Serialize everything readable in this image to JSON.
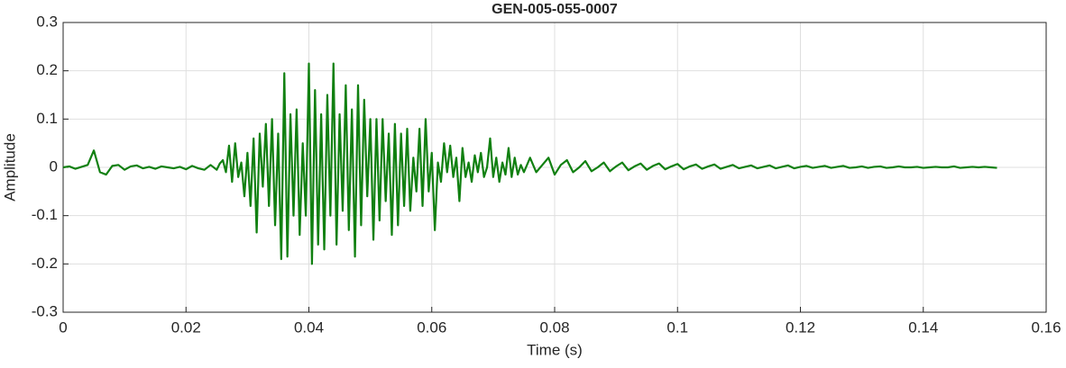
{
  "chart_data": {
    "type": "line",
    "title": "GEN-005-055-0007",
    "xlabel": "Time (s)",
    "ylabel": "Amplitude",
    "xlim": [
      0,
      0.16
    ],
    "ylim": [
      -0.3,
      0.3
    ],
    "xticks": [
      0,
      0.02,
      0.04,
      0.06,
      0.08,
      0.1,
      0.12,
      0.14,
      0.16
    ],
    "yticks": [
      -0.3,
      -0.2,
      -0.1,
      0,
      0.1,
      0.2,
      0.3
    ],
    "grid": true,
    "series": [
      {
        "color": "#118011",
        "x": [
          0,
          0.001,
          0.002,
          0.003,
          0.004,
          0.005,
          0.006,
          0.007,
          0.008,
          0.009,
          0.01,
          0.011,
          0.012,
          0.013,
          0.014,
          0.015,
          0.016,
          0.017,
          0.018,
          0.019,
          0.02,
          0.021,
          0.022,
          0.023,
          0.024,
          0.025,
          0.0255,
          0.026,
          0.0265,
          0.027,
          0.0275,
          0.028,
          0.0285,
          0.029,
          0.0295,
          0.03,
          0.0305,
          0.031,
          0.0315,
          0.032,
          0.0325,
          0.033,
          0.0335,
          0.034,
          0.0345,
          0.035,
          0.0355,
          0.036,
          0.0365,
          0.037,
          0.0375,
          0.038,
          0.0385,
          0.039,
          0.0395,
          0.04,
          0.0405,
          0.041,
          0.0415,
          0.042,
          0.0425,
          0.043,
          0.0435,
          0.044,
          0.0445,
          0.045,
          0.0455,
          0.046,
          0.0465,
          0.047,
          0.0475,
          0.048,
          0.0485,
          0.049,
          0.0495,
          0.05,
          0.0505,
          0.051,
          0.0515,
          0.052,
          0.0525,
          0.053,
          0.0535,
          0.054,
          0.0545,
          0.055,
          0.0555,
          0.056,
          0.0565,
          0.057,
          0.0575,
          0.058,
          0.0585,
          0.059,
          0.0595,
          0.06,
          0.0605,
          0.061,
          0.0615,
          0.062,
          0.0625,
          0.063,
          0.0635,
          0.064,
          0.0645,
          0.065,
          0.0655,
          0.066,
          0.0665,
          0.067,
          0.0675,
          0.068,
          0.0685,
          0.069,
          0.0695,
          0.07,
          0.0705,
          0.071,
          0.0715,
          0.072,
          0.0725,
          0.073,
          0.0735,
          0.074,
          0.0745,
          0.075,
          0.076,
          0.077,
          0.078,
          0.079,
          0.08,
          0.081,
          0.082,
          0.083,
          0.084,
          0.085,
          0.086,
          0.087,
          0.088,
          0.089,
          0.09,
          0.091,
          0.092,
          0.093,
          0.094,
          0.095,
          0.096,
          0.097,
          0.098,
          0.099,
          0.1,
          0.101,
          0.102,
          0.103,
          0.104,
          0.105,
          0.106,
          0.107,
          0.108,
          0.109,
          0.11,
          0.111,
          0.112,
          0.113,
          0.114,
          0.115,
          0.116,
          0.117,
          0.118,
          0.119,
          0.12,
          0.121,
          0.122,
          0.123,
          0.124,
          0.125,
          0.126,
          0.127,
          0.128,
          0.129,
          0.13,
          0.131,
          0.132,
          0.133,
          0.134,
          0.135,
          0.136,
          0.137,
          0.138,
          0.139,
          0.14,
          0.141,
          0.142,
          0.143,
          0.144,
          0.145,
          0.146,
          0.147,
          0.148,
          0.149,
          0.15,
          0.151,
          0.152
        ],
        "values": [
          0,
          0.002,
          -0.003,
          0.001,
          0.005,
          0.035,
          -0.01,
          -0.015,
          0.003,
          0.005,
          -0.005,
          0.002,
          0.004,
          -0.002,
          0.001,
          -0.003,
          0.002,
          0,
          -0.002,
          0.001,
          -0.004,
          0.003,
          -0.002,
          -0.005,
          0.005,
          -0.005,
          0.008,
          0.015,
          -0.01,
          0.045,
          -0.03,
          0.05,
          -0.02,
          0.01,
          -0.06,
          0.03,
          -0.08,
          0.06,
          -0.135,
          0.07,
          -0.04,
          0.09,
          -0.08,
          0.1,
          -0.12,
          0.07,
          -0.19,
          0.195,
          -0.185,
          0.11,
          -0.1,
          0.12,
          -0.14,
          0.05,
          -0.1,
          0.215,
          -0.2,
          0.16,
          -0.16,
          0.11,
          -0.17,
          0.15,
          -0.1,
          0.215,
          -0.16,
          0.11,
          -0.09,
          0.17,
          -0.13,
          0.12,
          -0.185,
          0.17,
          -0.12,
          0.14,
          -0.06,
          0.1,
          -0.15,
          0.1,
          -0.11,
          0.1,
          -0.07,
          0.07,
          -0.14,
          0.09,
          -0.12,
          0.07,
          -0.08,
          0.08,
          -0.09,
          0.02,
          -0.05,
          0.08,
          -0.08,
          0.1,
          -0.05,
          0.03,
          -0.13,
          0.01,
          -0.03,
          0.05,
          -0.01,
          0.045,
          -0.02,
          0.02,
          -0.07,
          0.04,
          -0.02,
          0.01,
          -0.03,
          0.025,
          -0.01,
          0.03,
          -0.02,
          0,
          0.06,
          -0.02,
          0.02,
          -0.03,
          0.01,
          -0.015,
          0.04,
          -0.02,
          0.02,
          -0.015,
          0.005,
          -0.01,
          0.02,
          -0.01,
          0.005,
          0.02,
          -0.015,
          0.005,
          0.015,
          -0.01,
          0,
          0.013,
          -0.008,
          0,
          0.01,
          -0.008,
          0.002,
          0.01,
          -0.006,
          0.002,
          0.008,
          -0.005,
          0.003,
          0.008,
          -0.004,
          0.002,
          0.007,
          -0.004,
          0.002,
          0.006,
          -0.003,
          0.002,
          0.006,
          -0.003,
          0.001,
          0.005,
          -0.002,
          0.001,
          0.004,
          -0.002,
          0.001,
          0.004,
          -0.002,
          0.001,
          0.004,
          -0.002,
          0.001,
          0.003,
          -0.001,
          0.001,
          0.003,
          -0.001,
          0.001,
          0.003,
          -0.001,
          0,
          0.002,
          -0.001,
          0.001,
          0.002,
          -0.001,
          0,
          0.002,
          0,
          0,
          0.001,
          -0.001,
          0,
          0.001,
          0,
          0,
          0.002,
          -0.001,
          0,
          0.001,
          0,
          0.001,
          0,
          -0.001
        ]
      }
    ]
  }
}
